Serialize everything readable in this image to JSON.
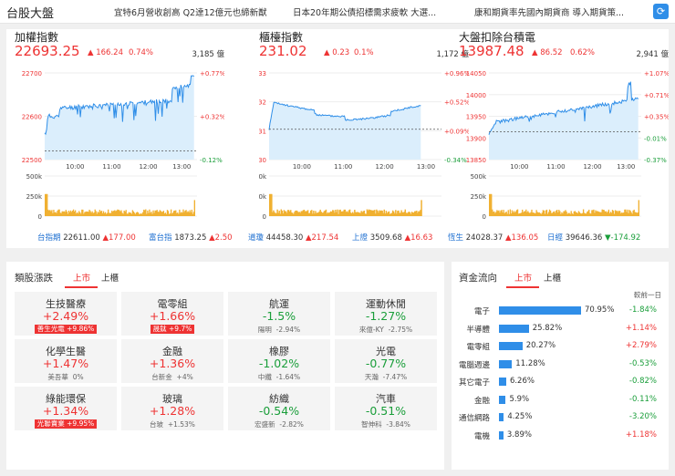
{
  "header": {
    "title": "台股大盤",
    "news": [
      "宜特6月營收創高 Q2達12億元也締新猷",
      "日本20年期公債招標需求疲軟 大選...",
      "康和期貨率先國內期貨商 導入期貨策..."
    ]
  },
  "indices": [
    {
      "name": "加權指數",
      "price": "22693.25",
      "change": "▲ 166.24",
      "pct": "0.74%",
      "volume": "3,185 億",
      "y_labels": [
        "22700",
        "22600",
        "22500"
      ],
      "pct_labels": [
        "+0.77%",
        "+0.32%",
        "-0.12%"
      ],
      "times": [
        "10:00",
        "11:00",
        "12:00",
        "13:00"
      ],
      "vol_labels": [
        "500k",
        "250k",
        "0"
      ]
    },
    {
      "name": "櫃檯指數",
      "price": "231.02",
      "change": "▲ 0.23",
      "pct": "0.1%",
      "volume": "1,172 億",
      "y_labels": [
        "233",
        "232",
        "231",
        "230"
      ],
      "pct_labels": [
        "+0.96%",
        "+0.52%",
        "+0.09%",
        "-0.34%"
      ],
      "times": [
        "10:00",
        "11:00",
        "12:00",
        "13:00"
      ],
      "vol_labels": [
        "100k",
        "50k",
        "0"
      ]
    },
    {
      "name": "大盤扣除台積電",
      "price": "13987.48",
      "change": "▲ 86.52",
      "pct": "0.62%",
      "volume": "2,941 億",
      "y_labels": [
        "14050",
        "14000",
        "13950",
        "13900",
        "13850"
      ],
      "pct_labels": [
        "+1.07%",
        "+0.71%",
        "+0.35%",
        "-0.01%",
        "-0.37%"
      ],
      "times": [
        "10:00",
        "11:00",
        "12:00",
        "13:00"
      ],
      "vol_labels": [
        "500k",
        "250k",
        "0"
      ]
    }
  ],
  "ticker": [
    {
      "name": "台指期",
      "value": "22611.00",
      "change": "▲177.00",
      "dir": "up"
    },
    {
      "name": "富台指",
      "value": "1873.25",
      "change": "▲2.50",
      "dir": "up"
    },
    {
      "name": "道瓊",
      "value": "44458.30",
      "change": "▲217.54",
      "dir": "up"
    },
    {
      "name": "上證",
      "value": "3509.68",
      "change": "▲16.63",
      "dir": "up"
    },
    {
      "name": "恆生",
      "value": "24028.37",
      "change": "▲136.05",
      "dir": "up"
    },
    {
      "name": "日經",
      "value": "39646.36",
      "change": "▼-174.92",
      "dir": "down"
    }
  ],
  "sector": {
    "title": "類股漲跌",
    "tabs": [
      "上市",
      "上櫃"
    ],
    "cards": [
      {
        "name": "生技醫療",
        "pct": "+2.49%",
        "dir": "up",
        "sub_name": "善生光電",
        "sub_pct": "+9.86%",
        "badge": true
      },
      {
        "name": "電零組",
        "pct": "+1.66%",
        "dir": "up",
        "sub_name": "晟鈦",
        "sub_pct": "+9.7%",
        "badge": true
      },
      {
        "name": "航運",
        "pct": "-1.5%",
        "dir": "down",
        "sub_name": "陽明",
        "sub_pct": "-2.94%",
        "badge": false
      },
      {
        "name": "運動休閒",
        "pct": "-1.27%",
        "dir": "down",
        "sub_name": "來億-KY",
        "sub_pct": "-2.75%",
        "badge": false
      },
      {
        "name": "化學生醫",
        "pct": "+1.47%",
        "dir": "up",
        "sub_name": "美吾華",
        "sub_pct": "0%",
        "badge": false
      },
      {
        "name": "金融",
        "pct": "+1.36%",
        "dir": "up",
        "sub_name": "台新金",
        "sub_pct": "+4%",
        "badge": false
      },
      {
        "name": "橡膠",
        "pct": "-1.02%",
        "dir": "down",
        "sub_name": "中纖",
        "sub_pct": "-1.64%",
        "badge": false
      },
      {
        "name": "光電",
        "pct": "-0.77%",
        "dir": "down",
        "sub_name": "天瀚",
        "sub_pct": "-7.47%",
        "badge": false
      },
      {
        "name": "綠能環保",
        "pct": "+1.34%",
        "dir": "up",
        "sub_name": "光聯賣業",
        "sub_pct": "+9.95%",
        "badge": true
      },
      {
        "name": "玻璃",
        "pct": "+1.28%",
        "dir": "up",
        "sub_name": "台玻",
        "sub_pct": "+1.53%",
        "badge": false
      },
      {
        "name": "紡織",
        "pct": "-0.54%",
        "dir": "down",
        "sub_name": "宏盛新",
        "sub_pct": "-2.82%",
        "badge": false
      },
      {
        "name": "汽車",
        "pct": "-0.51%",
        "dir": "down",
        "sub_name": "智伸科",
        "sub_pct": "-3.84%",
        "badge": false
      }
    ]
  },
  "flow": {
    "title": "資金流向",
    "tabs": [
      "上市",
      "上櫃"
    ],
    "compare_label": "較前一日",
    "rows": [
      {
        "name": "電子",
        "pct": "70.95%",
        "share": 70.95,
        "change": "-1.84%",
        "dir": "down"
      },
      {
        "name": "半導體",
        "pct": "25.82%",
        "share": 25.82,
        "change": "+1.14%",
        "dir": "up"
      },
      {
        "name": "電零組",
        "pct": "20.27%",
        "share": 20.27,
        "change": "+2.79%",
        "dir": "up"
      },
      {
        "name": "電腦週邊",
        "pct": "11.28%",
        "share": 11.28,
        "change": "-0.53%",
        "dir": "down"
      },
      {
        "name": "其它電子",
        "pct": "6.26%",
        "share": 6.26,
        "change": "-0.82%",
        "dir": "down"
      },
      {
        "name": "金融",
        "pct": "5.9%",
        "share": 5.9,
        "change": "-0.11%",
        "dir": "down"
      },
      {
        "name": "通信網路",
        "pct": "4.25%",
        "share": 4.25,
        "change": "-3.20%",
        "dir": "down"
      },
      {
        "name": "電機",
        "pct": "3.89%",
        "share": 3.89,
        "change": "+1.18%",
        "dir": "up"
      }
    ]
  },
  "colors": {
    "up": "#e33333",
    "down": "#1a9e3a",
    "accent": "#2f8ee8"
  }
}
